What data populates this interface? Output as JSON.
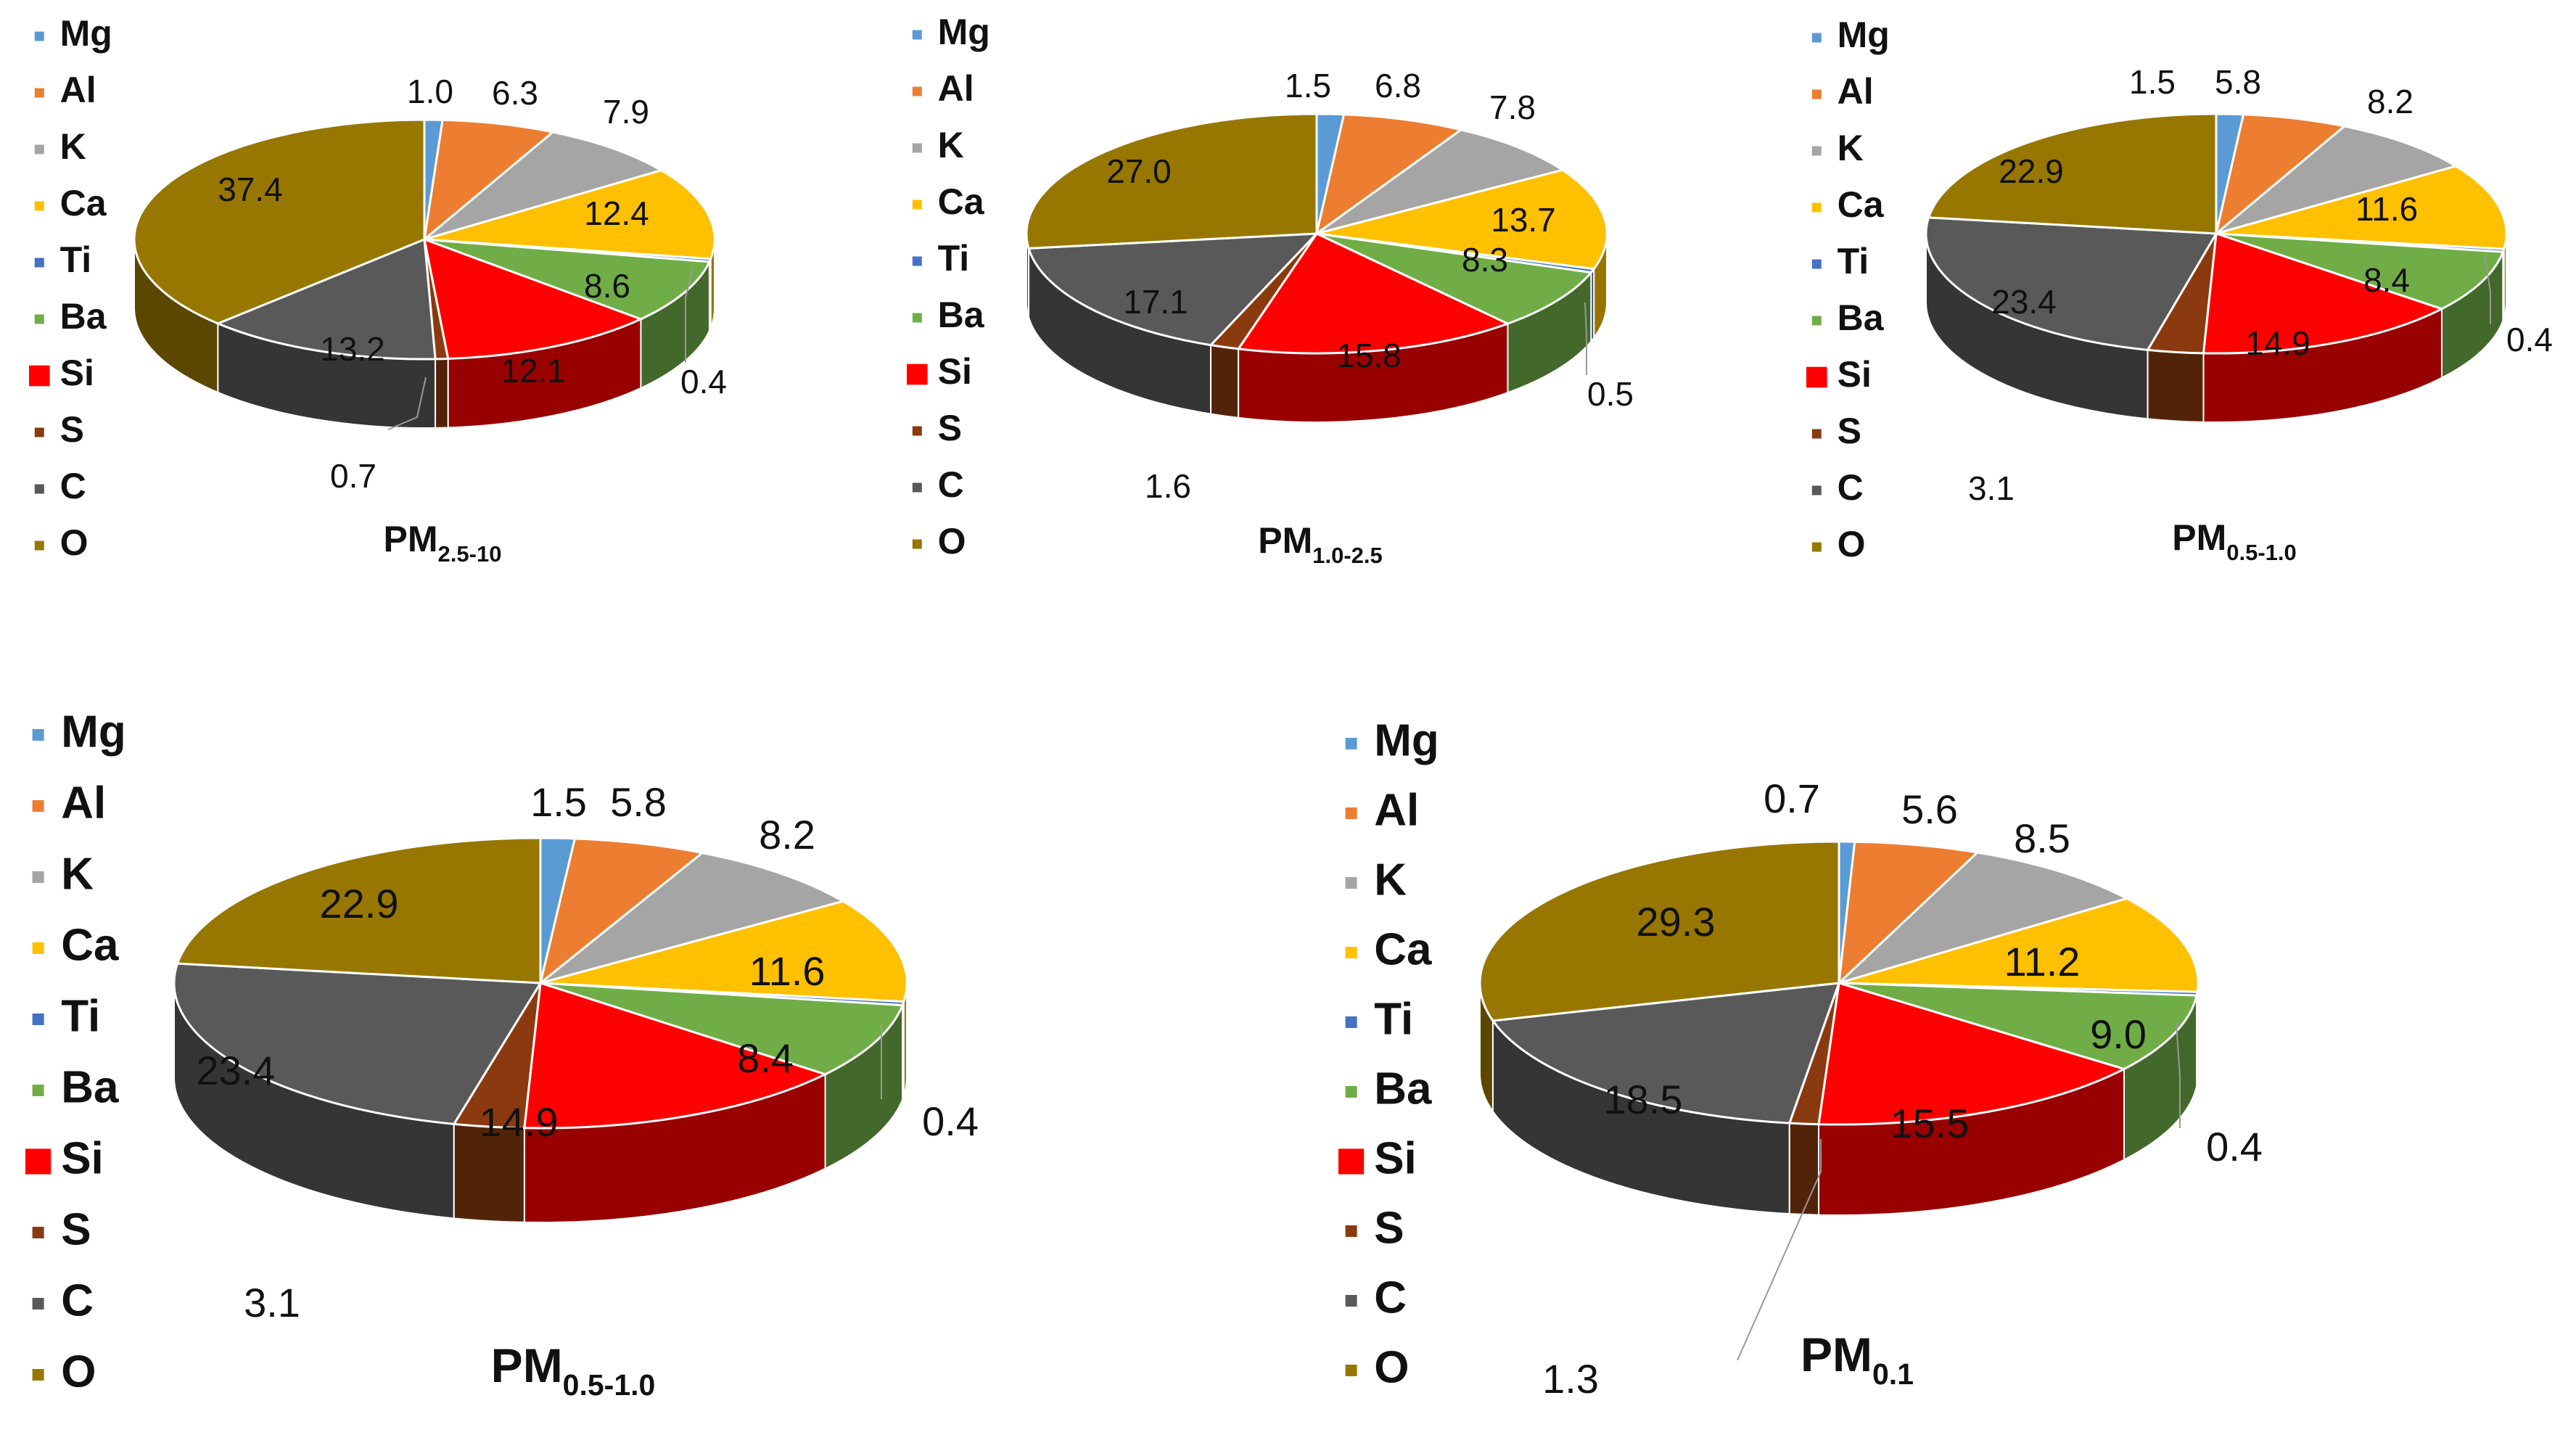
{
  "figure": {
    "description_units": "percent composition",
    "elements": [
      "Mg",
      "Al",
      "K",
      "Ca",
      "Ti",
      "Ba",
      "Si",
      "S",
      "C",
      "O"
    ],
    "legend_labels": [
      "Mg",
      "Al",
      "K",
      "Ca",
      "Ti",
      "Ba",
      "Si",
      "S",
      "C",
      "O"
    ],
    "colors": {
      "Mg": "#5b9bd5",
      "Al": "#ed7d31",
      "K": "#a5a5a5",
      "Ca": "#ffc000",
      "Ti": "#4472c4",
      "Ba": "#70ad47",
      "Si": "#ff0000",
      "S": "#8b3a0f",
      "C": "#595959",
      "O": "#977700"
    }
  },
  "chart_data": [
    {
      "type": "pie",
      "style": "3d",
      "title_main": "PM",
      "title_sub": "2.5-10",
      "categories": [
        "Mg",
        "Al",
        "K",
        "Ca",
        "Ti",
        "Ba",
        "Si",
        "S",
        "C",
        "O"
      ],
      "values": [
        1.0,
        6.3,
        7.9,
        12.4,
        0.4,
        8.6,
        12.1,
        0.7,
        13.2,
        37.4
      ],
      "labels": [
        "1.0",
        "6.3",
        "7.9",
        "12.4",
        "0.4",
        "8.6",
        "12.1",
        "0.7",
        "13.2",
        "37.4"
      ]
    },
    {
      "type": "pie",
      "style": "3d",
      "title_main": "PM",
      "title_sub": "1.0-2.5",
      "categories": [
        "Mg",
        "Al",
        "K",
        "Ca",
        "Ti",
        "Ba",
        "Si",
        "S",
        "C",
        "O"
      ],
      "values": [
        1.5,
        6.8,
        7.8,
        13.7,
        0.5,
        8.3,
        15.8,
        1.6,
        17.1,
        27.0
      ],
      "labels": [
        "1.5",
        "6.8",
        "7.8",
        "13.7",
        "0.5",
        "8.3",
        "15.8",
        "1.6",
        "17.1",
        "27.0"
      ]
    },
    {
      "type": "pie",
      "style": "3d",
      "title_main": "PM",
      "title_sub": "0.5-1.0",
      "categories": [
        "Mg",
        "Al",
        "K",
        "Ca",
        "Ti",
        "Ba",
        "Si",
        "S",
        "C",
        "O"
      ],
      "values": [
        1.5,
        5.8,
        8.2,
        11.6,
        0.4,
        8.4,
        14.9,
        3.1,
        23.4,
        22.9
      ],
      "labels": [
        "1.5",
        "5.8",
        "8.2",
        "11.6",
        "0.4",
        "8.4",
        "14.9",
        "3.1",
        "23.4",
        "22.9"
      ]
    },
    {
      "type": "pie",
      "style": "3d",
      "title_main": "PM",
      "title_sub": "0.5-1.0",
      "categories": [
        "Mg",
        "Al",
        "K",
        "Ca",
        "Ti",
        "Ba",
        "Si",
        "S",
        "C",
        "O"
      ],
      "values": [
        1.5,
        5.8,
        8.2,
        11.6,
        0.4,
        8.4,
        14.9,
        3.1,
        23.4,
        22.9
      ],
      "labels": [
        "1.5",
        "5.8",
        "8.2",
        "11.6",
        "0.4",
        "8.4",
        "14.9",
        "3.1",
        "23.4",
        "22.9"
      ]
    },
    {
      "type": "pie",
      "style": "3d",
      "title_main": "PM",
      "title_sub": "0.1",
      "categories": [
        "Mg",
        "Al",
        "K",
        "Ca",
        "Ti",
        "Ba",
        "Si",
        "S",
        "C",
        "O"
      ],
      "values": [
        0.7,
        5.6,
        8.5,
        11.2,
        0.4,
        9.0,
        15.5,
        1.3,
        18.5,
        29.3
      ],
      "labels": [
        "0.7",
        "5.6",
        "8.5",
        "11.2",
        "0.4",
        "9.0",
        "15.5",
        "1.3",
        "18.5",
        "29.3"
      ]
    }
  ]
}
